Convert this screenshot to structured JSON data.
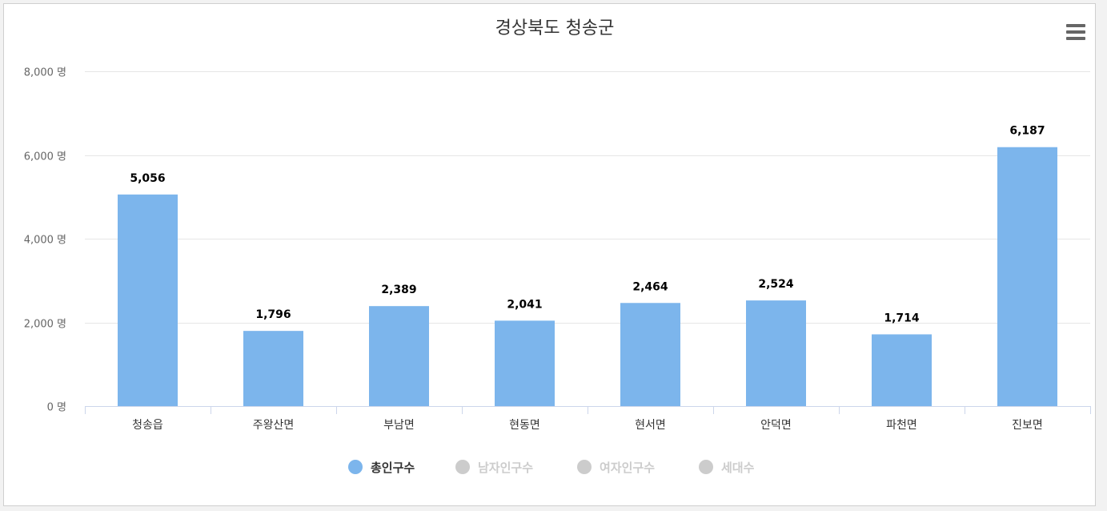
{
  "chart_data": {
    "type": "bar",
    "title": "경상북도 청송군",
    "categories": [
      "청송읍",
      "주왕산면",
      "부남면",
      "현동면",
      "현서면",
      "안덕면",
      "파천면",
      "진보면"
    ],
    "series": [
      {
        "name": "총인구수",
        "values": [
          5056,
          1796,
          2389,
          2041,
          2464,
          2524,
          1714,
          6187
        ],
        "visible": true
      }
    ],
    "data_labels": [
      "5,056",
      "1,796",
      "2,389",
      "2,041",
      "2,464",
      "2,524",
      "1,714",
      "6,187"
    ],
    "ylim": [
      0,
      8000
    ],
    "yticks": [
      0,
      2000,
      4000,
      6000,
      8000
    ],
    "ytick_labels": [
      "0 명",
      "2,000 명",
      "4,000 명",
      "6,000 명",
      "8,000 명"
    ],
    "grid": true,
    "legend": {
      "placement": "bottom-center",
      "items": [
        {
          "label": "총인구수",
          "active": true
        },
        {
          "label": "남자인구수",
          "active": false
        },
        {
          "label": "여자인구수",
          "active": false
        },
        {
          "label": "세대수",
          "active": false
        }
      ]
    },
    "colors": {
      "bar": "#7cb5ec",
      "grid": "#e6e6e6",
      "axis": "#ccd6eb",
      "legend_active_text": "#333333",
      "legend_inactive": "#cccccc"
    }
  },
  "menu": {
    "icon": "hamburger-menu-icon"
  }
}
